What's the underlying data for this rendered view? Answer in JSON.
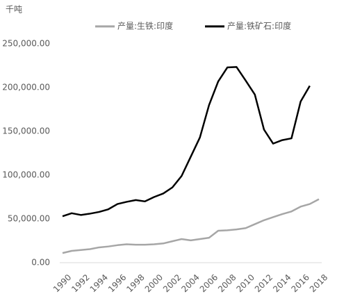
{
  "chart_data": {
    "type": "line",
    "unit_label": "千吨",
    "categories": [
      "1990",
      null,
      "1992",
      null,
      "1994",
      null,
      "1996",
      null,
      "1998",
      null,
      "2000",
      null,
      "2002",
      null,
      "2004",
      null,
      "2006",
      null,
      "2008",
      null,
      "2010",
      null,
      "2012",
      null,
      "2014",
      null,
      "2016",
      null,
      "2018"
    ],
    "series": [
      {
        "name": "产量:生铁:印度",
        "color": "#a6a6a6",
        "values": [
          11000,
          13500,
          14500,
          15500,
          17500,
          18500,
          20000,
          21000,
          20500,
          20500,
          21000,
          22000,
          24500,
          27000,
          25500,
          27000,
          28500,
          36500,
          37000,
          38000,
          39500,
          44000,
          48500,
          52000,
          55500,
          58500,
          64000,
          67000,
          72500
        ]
      },
      {
        "name": "产量:铁矿石:印度",
        "color": "#000000",
        "values": [
          53000,
          56500,
          54500,
          56000,
          58000,
          61000,
          67000,
          69500,
          71500,
          70000,
          75000,
          79000,
          86000,
          99000,
          121000,
          143000,
          180000,
          207000,
          223000,
          223500,
          208000,
          192000,
          152000,
          136000,
          140000,
          142000,
          184000,
          202000,
          null
        ]
      }
    ],
    "ylim": [
      0,
      250000
    ],
    "yticks": [
      {
        "value": 0,
        "label": "0.00"
      },
      {
        "value": 50000,
        "label": "50,000.00"
      },
      {
        "value": 100000,
        "label": "100,000.00"
      },
      {
        "value": 150000,
        "label": "150,000.00"
      },
      {
        "value": 200000,
        "label": "200,000.00"
      },
      {
        "value": 250000,
        "label": "250,000.00"
      }
    ],
    "legend": "top"
  }
}
